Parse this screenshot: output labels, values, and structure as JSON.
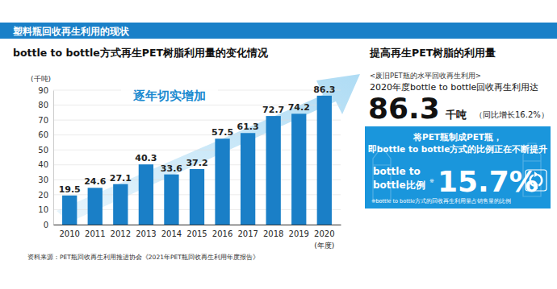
{
  "header": "塑料瓶回收再生利用的现状",
  "chart_data": {
    "type": "bar",
    "title": "bottle to bottle方式再生PET树脂利用量的变化情况",
    "y_label": "(千吨)",
    "x_label": "(年度)",
    "categories": [
      "2010",
      "2011",
      "2012",
      "2013",
      "2014",
      "2015",
      "2016",
      "2017",
      "2018",
      "2019",
      "2020"
    ],
    "values": [
      19.5,
      24.6,
      27.1,
      40.3,
      33.6,
      37.2,
      57.5,
      61.3,
      72.7,
      74.2,
      86.3
    ],
    "color": "#1a7fc7",
    "ylim": [
      0,
      90
    ],
    "yticks": [
      0,
      10,
      20,
      30,
      40,
      50,
      60,
      70,
      80,
      90
    ],
    "grid": true,
    "data_labels": true,
    "annotations": [
      "逐年切实增加"
    ],
    "source": "资料来源：PET瓶回收再生利用推进协会《2021年PET瓶回收再生利用年度报告》"
  },
  "right_panel": {
    "title": "提高再生PET树脂的利用量",
    "subtitle": "<废旧PET瓶的水平回收再生利用>",
    "line": "2020年度bottle to bottle回收再生利用达",
    "big_value": "86.3",
    "unit": "千吨",
    "growth": "（同比增长16.2%）",
    "box_line1": "将PET瓶制成PET瓶，",
    "box_line2": "即bottle to bottle方式的比例正在不断提升",
    "ratio_label1": "bottle to",
    "ratio_label2": "bottle比例",
    "ratio_mark": "※",
    "ratio_value": "15.7%",
    "footnote": "※bottle to bottle方式的回收再生利用量占销售量的比例"
  }
}
